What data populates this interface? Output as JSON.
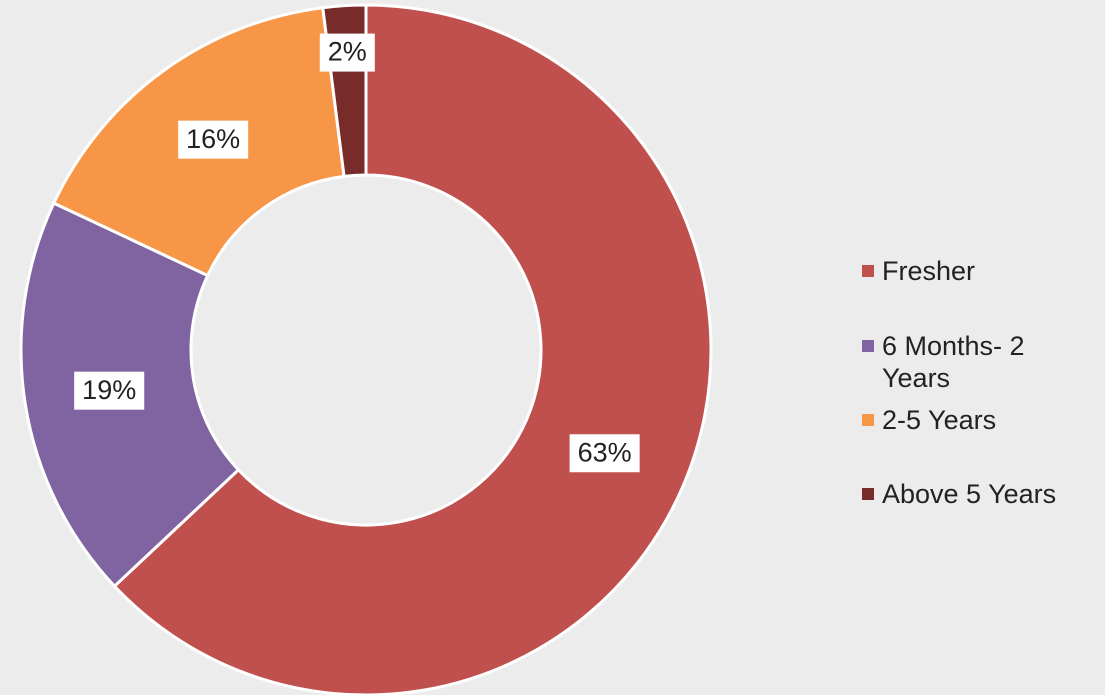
{
  "chart_data": {
    "type": "donut",
    "categories": [
      "Fresher",
      "6 Months- 2 Years",
      "2-5 Years",
      "Above 5 Years"
    ],
    "values": [
      63,
      19,
      16,
      2
    ],
    "value_labels": [
      "63%",
      "19%",
      "16%",
      "2%"
    ],
    "colors": [
      "#c0504d",
      "#8064a2",
      "#f79646",
      "#772c2a"
    ],
    "legend": "right"
  }
}
